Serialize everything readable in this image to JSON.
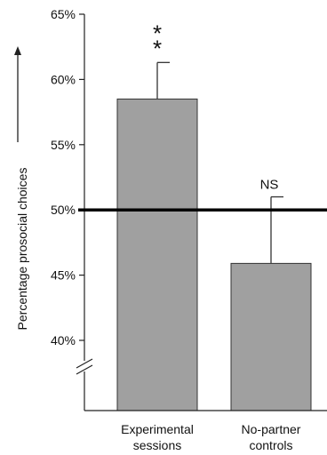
{
  "chart_data": {
    "type": "bar",
    "categories": [
      [
        "Experimental",
        "sessions"
      ],
      [
        "No-partner",
        "controls"
      ]
    ],
    "values": [
      58.5,
      45.9
    ],
    "error_upper": [
      61.3,
      51.0
    ],
    "significance": [
      "*\n*",
      "NS"
    ],
    "reference_line": 50,
    "ylabel": "Percentage prosocial choices",
    "ylim": [
      35,
      65
    ],
    "yticks": [
      40,
      45,
      50,
      55,
      60,
      65
    ],
    "ytick_labels": [
      "40%",
      "45%",
      "50%",
      "55%",
      "60%",
      "65%"
    ],
    "axis_break": true,
    "grid": false,
    "legend": "none",
    "colors": {
      "bar_fill": "#a0a0a0",
      "bar_stroke": "#333333",
      "axis": "#222222",
      "reference_line": "#000000"
    }
  }
}
